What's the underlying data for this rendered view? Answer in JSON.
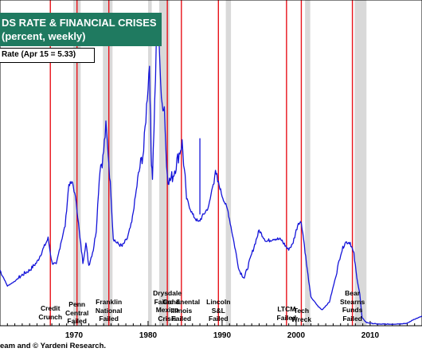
{
  "chart_data": {
    "type": "line",
    "title_line1": "DS RATE & FINANCIAL CRISES",
    "title_line2": "(percent, weekly)",
    "legend": "Rate (Apr 15 = 5.33)",
    "source": "eam and © Yardeni Research.",
    "xlim": [
      1960.0,
      2017.0
    ],
    "ylim": [
      0,
      20
    ],
    "x_ticks": [
      1970,
      1980,
      1990,
      2000,
      2010
    ],
    "x_tick_labels": [
      "1970",
      "1980",
      "1990",
      "2000",
      "2010"
    ],
    "recessions": [
      [
        1969.9,
        1970.9
      ],
      [
        1973.9,
        1975.2
      ],
      [
        1980.0,
        1980.5
      ],
      [
        1981.5,
        1982.9
      ],
      [
        1990.5,
        1991.2
      ],
      [
        2001.2,
        2001.9
      ],
      [
        2007.9,
        2009.5
      ]
    ],
    "crisis_lines": [
      1966.8,
      1970.4,
      1974.7,
      1982.6,
      1984.5,
      1989.5,
      1998.7,
      2000.7,
      2007.6
    ],
    "crises": [
      {
        "label": "Credit\nCrunch",
        "x": 1966.8
      },
      {
        "label": "Penn\nCentral\nFailed",
        "x": 1970.4
      },
      {
        "label": "Franklin\nNational\nFailed",
        "x": 1974.7
      },
      {
        "label": "Drysdale\nFailed &\nMexico\nCrisis",
        "x": 1982.6
      },
      {
        "label": "Continental\nIllinois\nFailed",
        "x": 1984.5
      },
      {
        "label": "Lincoln\nS&L\nFailed",
        "x": 1989.5
      },
      {
        "label": "LTCM\nFailed",
        "x": 1998.7
      },
      {
        "label": "Tech\nWreck",
        "x": 2000.7
      },
      {
        "label": "Bear\nStearns\nFunds\nFailed",
        "x": 2007.6
      }
    ],
    "series": [
      {
        "x": [
          1960.0,
          1961.0,
          1962.0,
          1963.0,
          1964.0,
          1965.0,
          1965.8,
          1966.5,
          1967.0,
          1967.6,
          1968.2,
          1968.8,
          1969.3,
          1969.8,
          1970.3,
          1970.8,
          1971.2,
          1971.6,
          1972.0,
          1972.6,
          1973.0,
          1973.5,
          1973.9,
          1974.3,
          1974.6,
          1974.9,
          1975.3,
          1975.8,
          1976.5,
          1977.2,
          1977.8,
          1978.4,
          1978.9,
          1979.4,
          1979.9,
          1980.2,
          1980.4,
          1980.6,
          1980.9,
          1981.2,
          1981.5,
          1981.8,
          1982.2,
          1982.5,
          1982.8,
          1983.4,
          1984.0,
          1984.6,
          1985.2,
          1986.0,
          1986.8,
          1987.5,
          1988.2,
          1989.0,
          1989.5,
          1990.0,
          1990.8,
          1991.5,
          1992.3,
          1993.0,
          1994.0,
          1995.0,
          1996.0,
          1997.0,
          1998.0,
          1998.9,
          1999.5,
          2000.3,
          2000.7,
          2001.0,
          2001.5,
          2002.0,
          2003.0,
          2003.5,
          2004.5,
          2005.3,
          2006.0,
          2006.6,
          2007.3,
          2007.8,
          2008.2,
          2008.6,
          2008.9,
          2009.5,
          2011.0,
          2013.0,
          2015.0,
          2015.9,
          2016.5,
          2017.0
        ],
        "y": [
          3.5,
          2.5,
          2.8,
          3.2,
          3.5,
          4.0,
          4.8,
          5.5,
          4.0,
          3.8,
          5.2,
          6.3,
          8.9,
          9.0,
          7.8,
          5.5,
          4.0,
          5.2,
          3.8,
          4.8,
          6.0,
          10.0,
          10.5,
          12.5,
          11.0,
          9.0,
          5.5,
          5.2,
          5.0,
          5.5,
          6.5,
          8.5,
          10.0,
          11.0,
          14.5,
          16.5,
          11.0,
          9.5,
          14.0,
          19.0,
          18.0,
          14.0,
          13.8,
          10.0,
          9.0,
          9.5,
          10.5,
          11.5,
          8.0,
          7.0,
          6.5,
          7.0,
          7.5,
          9.5,
          9.0,
          8.2,
          7.2,
          5.5,
          3.5,
          3.0,
          4.5,
          6.0,
          5.3,
          5.5,
          5.4,
          4.8,
          5.1,
          6.5,
          6.5,
          5.5,
          3.5,
          1.8,
          1.2,
          1.0,
          1.5,
          3.0,
          4.5,
          5.25,
          5.25,
          4.5,
          3.0,
          2.0,
          0.5,
          0.2,
          0.1,
          0.1,
          0.15,
          0.4,
          0.5,
          0.6
        ]
      }
    ]
  }
}
